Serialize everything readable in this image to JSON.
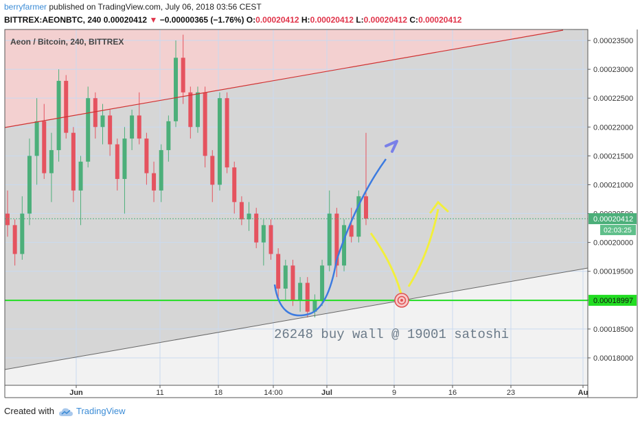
{
  "header": {
    "user": "berryfarmer",
    "published_text": "published on TradingView.com, July 06, 2018 03:56 CEST"
  },
  "ohlc": {
    "symbol": "BITTREX:AEONBTC, 240",
    "last": "0.00020412",
    "change": "−0.00000365 (−1.76%)",
    "o_label": "O:",
    "o": "0.00020412",
    "h_label": "H:",
    "h": "0.00020412",
    "l_label": "L:",
    "l": "0.00020412",
    "c_label": "C:",
    "c": "0.00020412"
  },
  "chart_data": {
    "type": "candlestick",
    "title": "Aeon / Bitcoin, 240, BITTREX",
    "x_tick_labels": [
      "Jun",
      "11",
      "18",
      "14:00",
      "Jul",
      "9",
      "16",
      "23",
      "Au"
    ],
    "y_tick_labels": [
      "0.00023500",
      "0.00023000",
      "0.00022500",
      "0.00022000",
      "0.00021500",
      "0.00021000",
      "0.00020500",
      "0.00020000",
      "0.00019500",
      "0.00019000",
      "0.00018500",
      "0.00018000"
    ],
    "y_ticks": [
      0.000235,
      0.00023,
      0.000225,
      0.00022,
      0.000215,
      0.00021,
      0.000205,
      0.0002,
      0.000195,
      0.00019,
      0.000185,
      0.00018
    ],
    "ylim": [
      0.0001765,
      0.0002375
    ],
    "last_price": 0.00020412,
    "last_price_label": "0.00020412",
    "countdown_label": "02:03:25",
    "support_level": 0.00018997,
    "support_label": "0.00018997",
    "annotation": "26248 buy wall @ 19001 satoshi",
    "grid": true,
    "colors": {
      "up": "#4caf7a",
      "down": "#e5535f",
      "support": "#22dd22",
      "last_price": "#4caf7a",
      "resistance_line": "#d03030",
      "channel_fill": "#d6d6d6",
      "upper_fill": "#f3d0d0",
      "blue_path": "#3c7be0",
      "yellow_path": "#f2ef3c",
      "target": "#e05050"
    },
    "candles_ohlc": [
      [
        0.000205,
        0.000209,
        0.000201,
        0.000203
      ],
      [
        0.000203,
        0.000204,
        0.000196,
        0.000198
      ],
      [
        0.000198,
        0.000208,
        0.000197,
        0.000205
      ],
      [
        0.000205,
        0.000218,
        0.000203,
        0.000215
      ],
      [
        0.000215,
        0.000225,
        0.00021,
        0.000221
      ],
      [
        0.000221,
        0.000224,
        0.000211,
        0.000212
      ],
      [
        0.000212,
        0.000219,
        0.000207,
        0.000216
      ],
      [
        0.000216,
        0.00023,
        0.000214,
        0.000228
      ],
      [
        0.000228,
        0.000229,
        0.000218,
        0.000219
      ],
      [
        0.000219,
        0.00022,
        0.000207,
        0.000209
      ],
      [
        0.000209,
        0.000215,
        0.000203,
        0.000214
      ],
      [
        0.000214,
        0.000227,
        0.000213,
        0.000225
      ],
      [
        0.000225,
        0.000226,
        0.000218,
        0.00022
      ],
      [
        0.00022,
        0.000224,
        0.000217,
        0.000222
      ],
      [
        0.000222,
        0.000223,
        0.000215,
        0.000217
      ],
      [
        0.000217,
        0.000218,
        0.000209,
        0.000211
      ],
      [
        0.000211,
        0.00022,
        0.000205,
        0.000218
      ],
      [
        0.000218,
        0.000223,
        0.000216,
        0.000222
      ],
      [
        0.000222,
        0.000226,
        0.000217,
        0.000218
      ],
      [
        0.000218,
        0.000219,
        0.00021,
        0.000212
      ],
      [
        0.000212,
        0.000214,
        0.000207,
        0.000209
      ],
      [
        0.000209,
        0.000217,
        0.000207,
        0.000216
      ],
      [
        0.000216,
        0.000222,
        0.000214,
        0.000221
      ],
      [
        0.000221,
        0.000235,
        0.00022,
        0.000232
      ],
      [
        0.000232,
        0.000236,
        0.000224,
        0.000226
      ],
      [
        0.000226,
        0.000227,
        0.000218,
        0.00022
      ],
      [
        0.00022,
        0.000227,
        0.000219,
        0.000226
      ],
      [
        0.000226,
        0.000227,
        0.000213,
        0.000215
      ],
      [
        0.000215,
        0.000216,
        0.000207,
        0.00021
      ],
      [
        0.00021,
        0.000226,
        0.000209,
        0.000225
      ],
      [
        0.000225,
        0.000226,
        0.000212,
        0.000213
      ],
      [
        0.000213,
        0.000214,
        0.000205,
        0.000207
      ],
      [
        0.000207,
        0.000208,
        0.000203,
        0.000204
      ],
      [
        0.000204,
        0.000207,
        0.000202,
        0.000205
      ],
      [
        0.000205,
        0.000206,
        0.000199,
        0.0002
      ],
      [
        0.0002,
        0.000204,
        0.000196,
        0.000203
      ],
      [
        0.000203,
        0.000204,
        0.000197,
        0.000198
      ],
      [
        0.000198,
        0.000199,
        0.00019,
        0.000192
      ],
      [
        0.000192,
        0.000197,
        0.00019,
        0.000196
      ],
      [
        0.000196,
        0.000197,
        0.000189,
        0.00019
      ],
      [
        0.00019,
        0.000194,
        0.000188,
        0.000193
      ],
      [
        0.000193,
        0.000194,
        0.000187,
        0.000188
      ],
      [
        0.000188,
        0.000191,
        0.000187,
        0.00019
      ],
      [
        0.00019,
        0.000197,
        0.000189,
        0.000196
      ],
      [
        0.000196,
        0.000209,
        0.000195,
        0.000205
      ],
      [
        0.000205,
        0.000206,
        0.000194,
        0.000196
      ],
      [
        0.000196,
        0.000204,
        0.000195,
        0.000203
      ],
      [
        0.000203,
        0.000206,
        0.0002,
        0.000201
      ],
      [
        0.000201,
        0.000209,
        0.0002,
        0.000208
      ],
      [
        0.000208,
        0.000219,
        0.000203,
        0.00020412
      ]
    ]
  }
}
